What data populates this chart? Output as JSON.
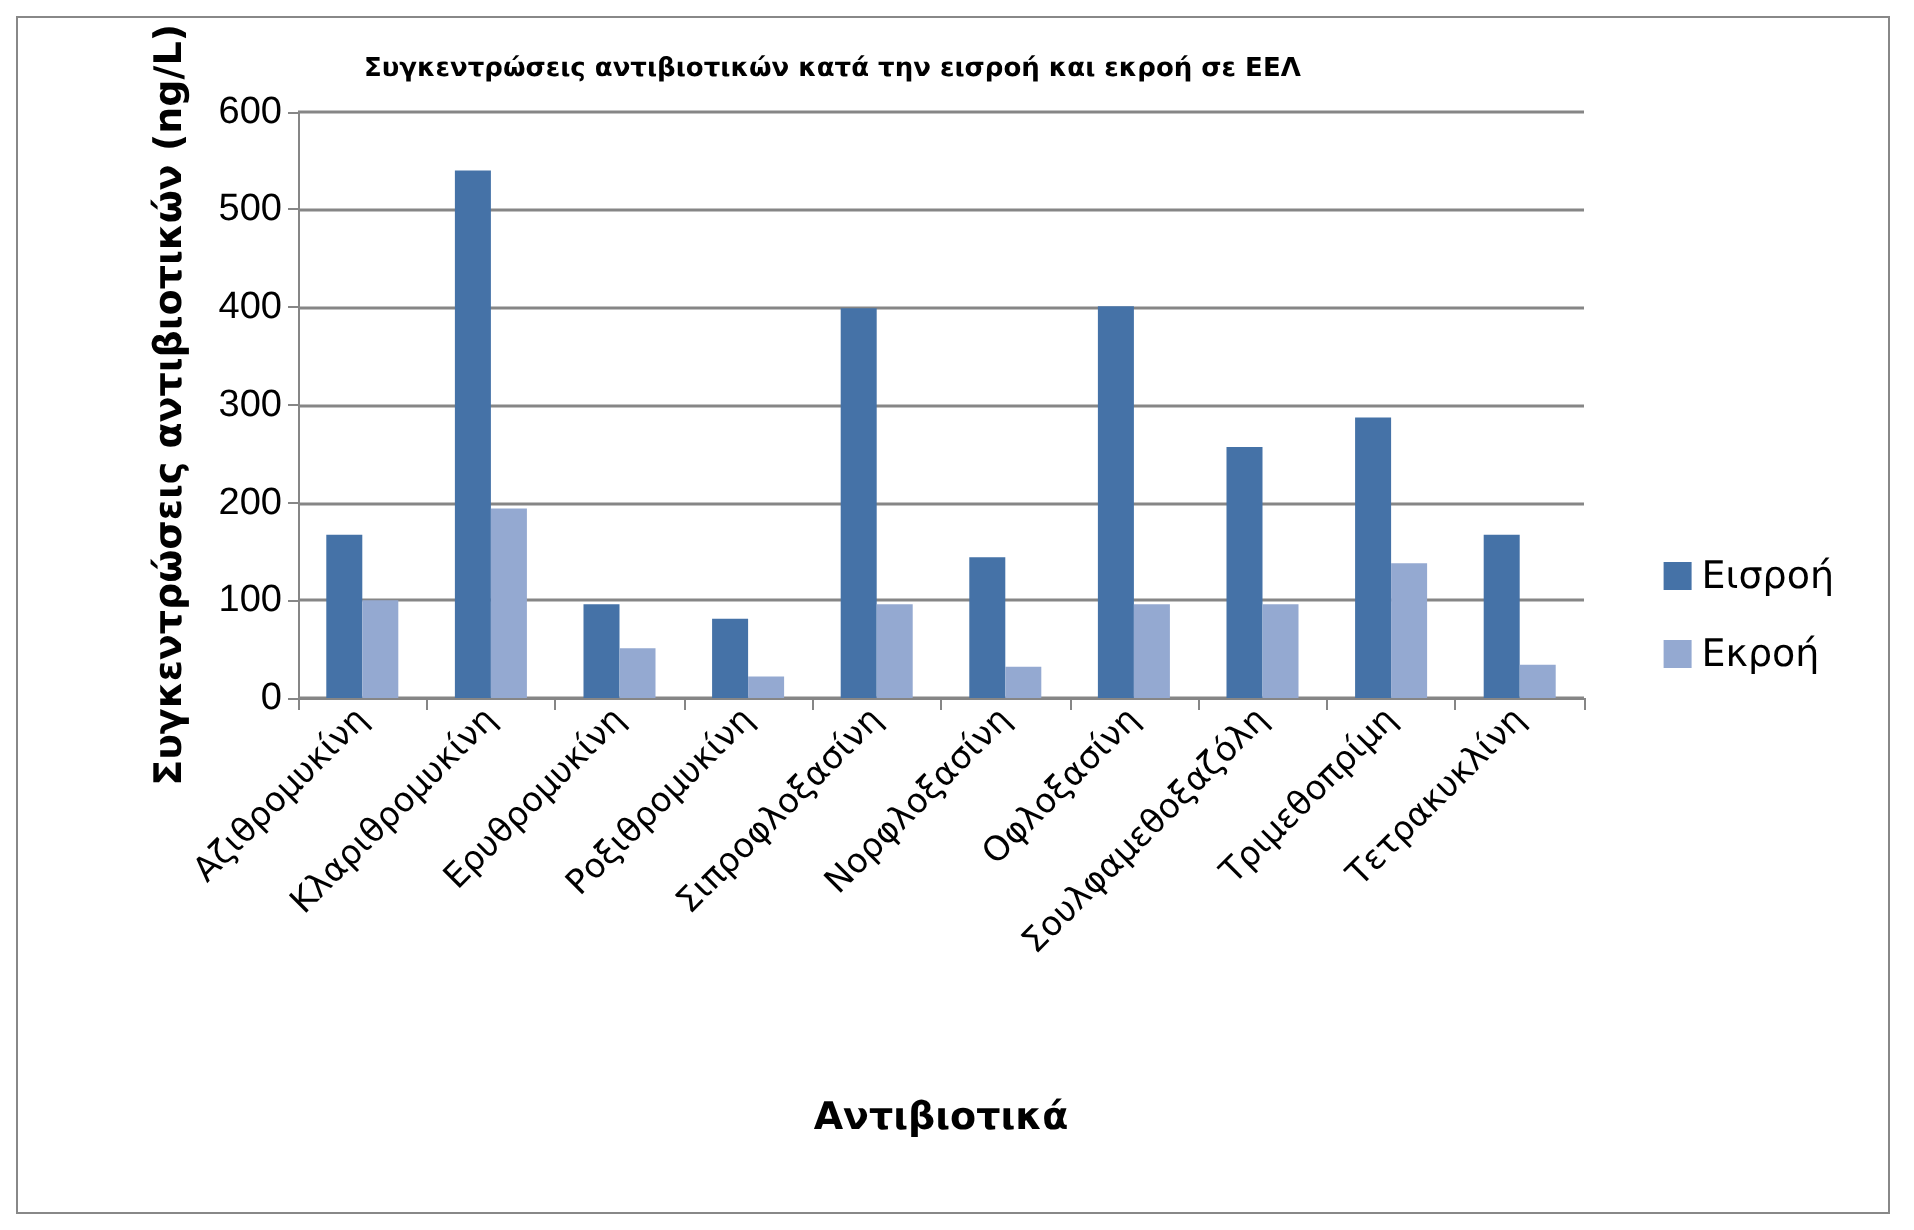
{
  "chart_data": {
    "type": "bar",
    "title": "Συγκεντρώσεις αντιβιοτικών κατά την εισροή και εκροή σε ΕΕΛ",
    "xlabel": "Αντιβιοτικά",
    "ylabel": "Συγκεντρώσεις αντιβιοτικών (ng/L)",
    "categories": [
      "Αζιθρομυκίνη",
      "Κλαριθρομυκίνη",
      "Ερυθρομυκίνη",
      "Ροξιθρομυκίνη",
      "Σιπροφλοξασίνη",
      "Νορφλοξασίνη",
      "Οφλοξασίνη",
      "Σουλφαμεθοξαζόλη",
      "Τριμεθοπρίμη",
      "Τετρακυκλίνη"
    ],
    "series": [
      {
        "name": "Εισροή",
        "color": "#4572a7",
        "values": [
          167,
          540,
          96,
          81,
          399,
          144,
          401,
          257,
          287,
          167
        ]
      },
      {
        "name": "Εκροή",
        "color": "#94a9d1",
        "values": [
          100,
          194,
          51,
          22,
          96,
          32,
          96,
          96,
          138,
          34
        ]
      }
    ],
    "ylim": [
      0,
      600
    ],
    "yticks": [
      0,
      100,
      200,
      300,
      400,
      500,
      600
    ],
    "grid": "y",
    "legend": "right"
  }
}
